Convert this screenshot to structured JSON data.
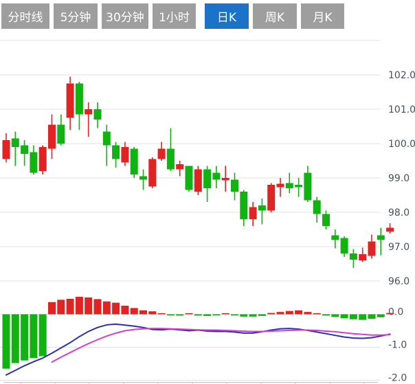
{
  "tabs": {
    "active_index": 4,
    "items": [
      {
        "label": "分时线"
      },
      {
        "label": "5分钟"
      },
      {
        "label": "30分钟"
      },
      {
        "label": "1小时"
      },
      {
        "label": "日K"
      },
      {
        "label": "周K"
      },
      {
        "label": "月K"
      }
    ]
  },
  "chart_data": {
    "type": "candlestick",
    "title": "",
    "panels": [
      "price-candles",
      "macd"
    ],
    "legend": "none",
    "grid": "on",
    "price_axis": {
      "side": "right",
      "tick_values": [
        102,
        101,
        100,
        99,
        98,
        97,
        96
      ],
      "tick_labels": [
        "102.0",
        "101.0",
        "100.0",
        "99.0",
        "98.0",
        "97.0",
        "96.0"
      ],
      "top_unlabeled_gridline_value": 103,
      "ylim": [
        95.8,
        103.0
      ]
    },
    "macd_axis": {
      "side": "right",
      "tick_values": [
        0,
        -1,
        -2
      ],
      "tick_labels": [
        "0.0",
        "-1.0",
        "-2.0"
      ],
      "ylim": [
        -2.1,
        0.6
      ]
    },
    "candles_ohlc_format": [
      "open",
      "high",
      "low",
      "close"
    ],
    "candles": [
      [
        99.55,
        100.3,
        99.45,
        100.1
      ],
      [
        100.15,
        100.35,
        99.35,
        99.9
      ],
      [
        99.95,
        100.1,
        99.35,
        99.7
      ],
      [
        99.75,
        99.95,
        99.1,
        99.15
      ],
      [
        99.2,
        99.95,
        99.1,
        99.9
      ],
      [
        99.85,
        100.85,
        99.55,
        100.55
      ],
      [
        100.55,
        100.85,
        99.95,
        100.0
      ],
      [
        100.75,
        101.95,
        100.4,
        101.75
      ],
      [
        101.75,
        101.8,
        100.4,
        100.85
      ],
      [
        100.85,
        101.2,
        100.2,
        101.0
      ],
      [
        101.0,
        101.2,
        100.45,
        100.7
      ],
      [
        100.35,
        100.55,
        99.35,
        99.95
      ],
      [
        99.95,
        100.05,
        99.3,
        99.55
      ],
      [
        99.45,
        100.05,
        99.35,
        99.9
      ],
      [
        99.85,
        99.9,
        99.0,
        99.1
      ],
      [
        99.05,
        99.25,
        98.65,
        98.95
      ],
      [
        98.75,
        99.6,
        98.7,
        99.55
      ],
      [
        99.55,
        100.05,
        99.5,
        99.85
      ],
      [
        99.85,
        100.45,
        99.2,
        99.25
      ],
      [
        99.25,
        99.5,
        99.05,
        99.4
      ],
      [
        99.35,
        99.35,
        98.6,
        98.65
      ],
      [
        98.6,
        99.35,
        98.5,
        99.25
      ],
      [
        99.25,
        99.35,
        98.3,
        98.7
      ],
      [
        99.15,
        99.35,
        98.7,
        98.95
      ],
      [
        98.93,
        99.35,
        98.6,
        99.0
      ],
      [
        98.95,
        99.15,
        98.35,
        98.6
      ],
      [
        98.6,
        98.65,
        97.6,
        97.8
      ],
      [
        97.8,
        98.3,
        97.6,
        98.15
      ],
      [
        98.2,
        98.4,
        97.65,
        98.05
      ],
      [
        98.05,
        98.85,
        98.0,
        98.8
      ],
      [
        98.73,
        99.0,
        98.45,
        98.83
      ],
      [
        98.85,
        99.15,
        98.55,
        98.7
      ],
      [
        98.8,
        99.0,
        98.45,
        98.73
      ],
      [
        99.15,
        99.35,
        98.3,
        98.35
      ],
      [
        98.35,
        98.45,
        97.7,
        97.95
      ],
      [
        97.95,
        98.05,
        97.5,
        97.6
      ],
      [
        97.33,
        97.5,
        96.95,
        97.2
      ],
      [
        97.25,
        97.3,
        96.7,
        96.8
      ],
      [
        96.8,
        96.93,
        96.38,
        96.62
      ],
      [
        96.6,
        96.97,
        96.55,
        96.78
      ],
      [
        96.73,
        97.35,
        96.65,
        97.15
      ],
      [
        97.33,
        97.55,
        96.75,
        97.2
      ],
      [
        97.44,
        97.68,
        97.38,
        97.55
      ]
    ],
    "macd": {
      "hist": [
        -1.65,
        -1.48,
        -1.4,
        -1.33,
        -1.27,
        0.37,
        0.44,
        0.47,
        0.53,
        0.51,
        0.46,
        0.39,
        0.35,
        0.26,
        0.19,
        0.12,
        0.09,
        0.03,
        -0.03,
        -0.04,
        0.02,
        -0.04,
        -0.05,
        -0.02,
        0.03,
        -0.02,
        -0.07,
        -0.07,
        -0.05,
        0.04,
        0.07,
        0.1,
        0.12,
        0.07,
        0.03,
        -0.04,
        -0.08,
        -0.12,
        -0.15,
        -0.17,
        -0.14,
        -0.09,
        0.04
      ],
      "dif": [
        -1.84,
        -1.7,
        -1.56,
        -1.44,
        -1.33,
        -1.18,
        -1.02,
        -0.86,
        -0.68,
        -0.52,
        -0.4,
        -0.32,
        -0.3,
        -0.33,
        -0.36,
        -0.4,
        -0.46,
        -0.47,
        -0.45,
        -0.47,
        -0.5,
        -0.48,
        -0.51,
        -0.52,
        -0.52,
        -0.54,
        -0.57,
        -0.57,
        -0.53,
        -0.48,
        -0.44,
        -0.43,
        -0.45,
        -0.49,
        -0.54,
        -0.59,
        -0.64,
        -0.69,
        -0.72,
        -0.73,
        -0.71,
        -0.66,
        -0.6
      ],
      "dea": [
        null,
        null,
        null,
        null,
        null,
        -1.45,
        -1.3,
        -1.16,
        -1.02,
        -0.89,
        -0.77,
        -0.66,
        -0.57,
        -0.5,
        -0.46,
        -0.44,
        -0.43,
        -0.43,
        -0.44,
        -0.45,
        -0.46,
        -0.47,
        -0.48,
        -0.48,
        -0.49,
        -0.5,
        -0.51,
        -0.52,
        -0.52,
        -0.51,
        -0.5,
        -0.49,
        -0.48,
        -0.48,
        -0.49,
        -0.51,
        -0.53,
        -0.56,
        -0.59,
        -0.61,
        -0.63,
        -0.63,
        -0.62
      ]
    },
    "colors": {
      "up_candle": "#e02424",
      "down_candle": "#12b212",
      "hist_positive": "#e02424",
      "hist_negative": "#12b212",
      "dif_line": "#2b2fb4",
      "dea_line": "#d63ec8",
      "gridline": "#e0e0e0",
      "axis_label": "#45505a",
      "axis_line": "#c0c0c0",
      "tab_active_bg": "#1a73c8",
      "tab_inactive_bg": "#9e9e9e",
      "tab_text": "#ffffff",
      "background": "#ffffff"
    }
  }
}
